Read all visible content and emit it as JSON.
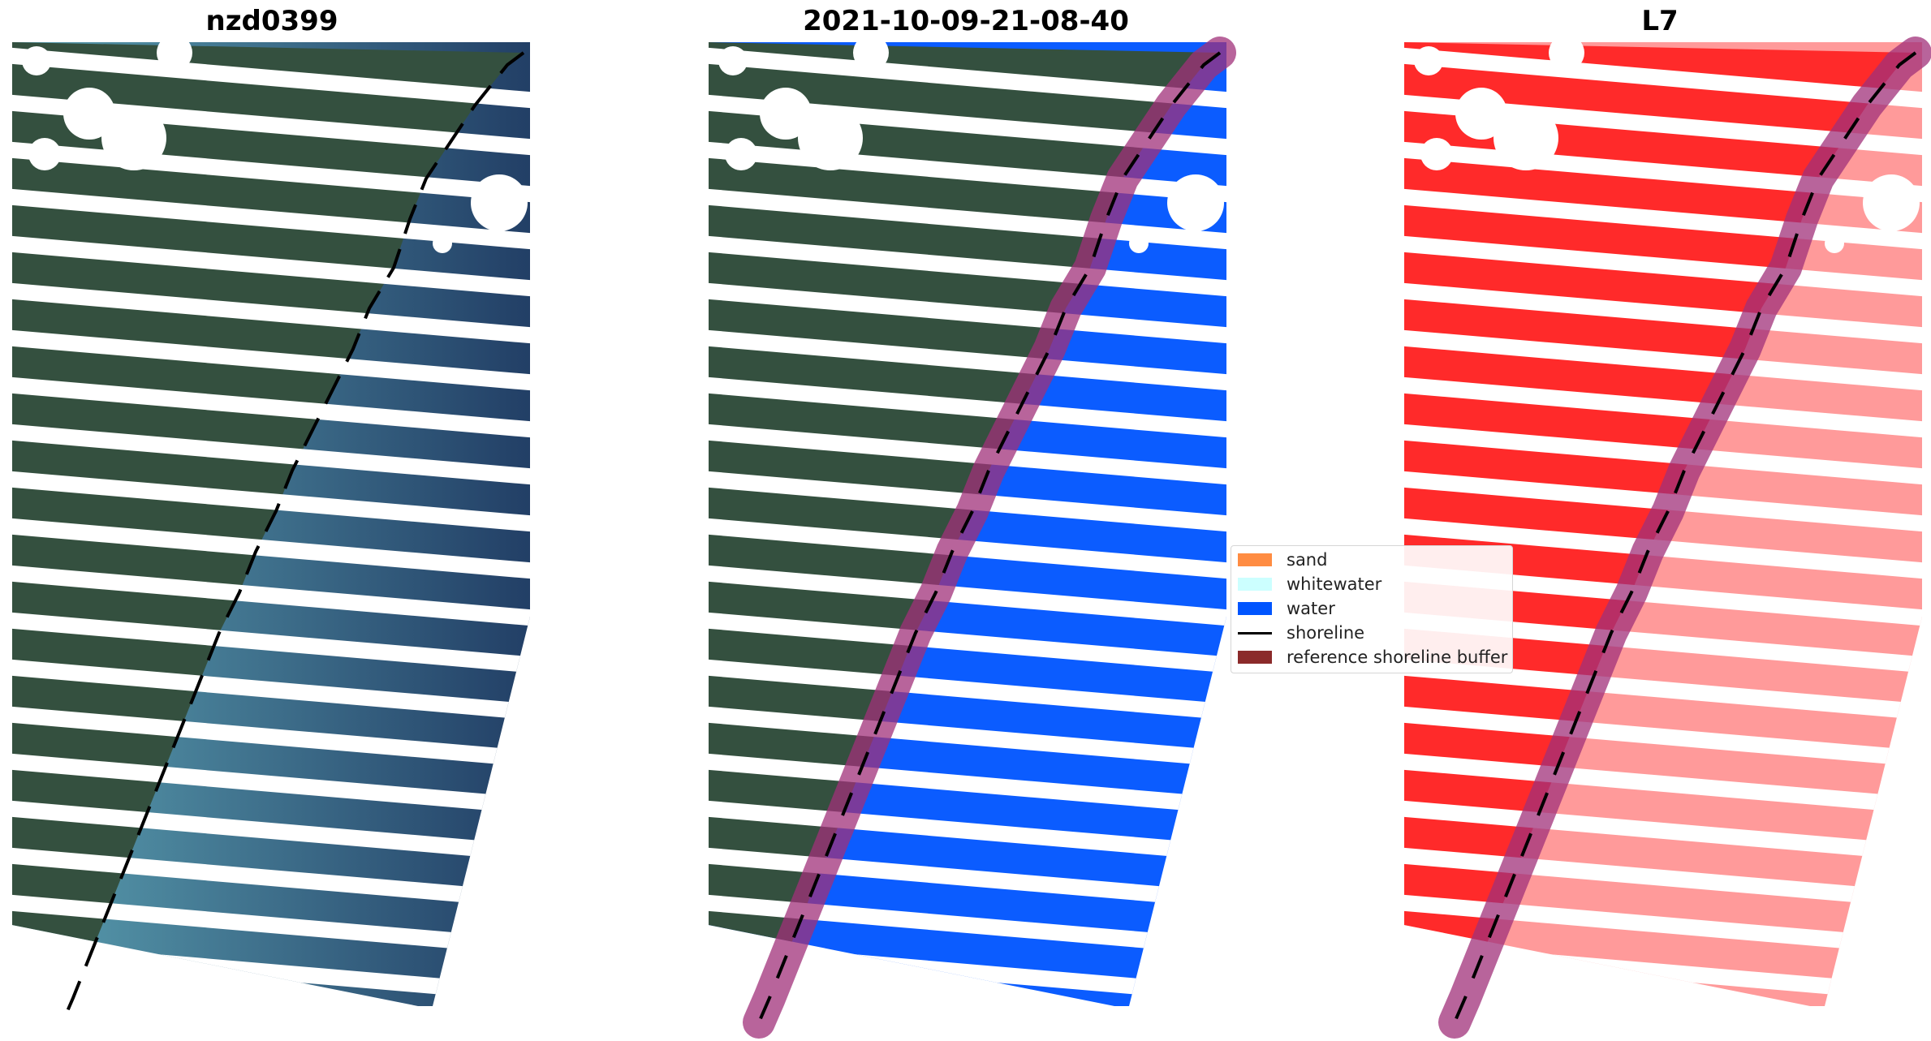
{
  "panels": [
    {
      "title": "nzd0399"
    },
    {
      "title": "2021-10-09-21-08-40"
    },
    {
      "title": "L7"
    }
  ],
  "legend": {
    "items": [
      {
        "label": "sand",
        "color": "#ff8c42",
        "kind": "patch"
      },
      {
        "label": "whitewater",
        "color": "#ccffff",
        "kind": "patch"
      },
      {
        "label": "water",
        "color": "#0055ff",
        "kind": "patch"
      },
      {
        "label": "shoreline",
        "color": "#000000",
        "kind": "line"
      },
      {
        "label": "reference shoreline buffer",
        "color": "#8b1a1a",
        "kind": "patch"
      }
    ]
  },
  "colors": {
    "land": "#34503f",
    "sea_near": "#5a9fb0",
    "sea_far": "#223f66",
    "classified_water": "#0b5cff",
    "buffer": "#a0307a",
    "mask_red": "#ff2a2a",
    "mask_pink": "#ff9a9a"
  }
}
